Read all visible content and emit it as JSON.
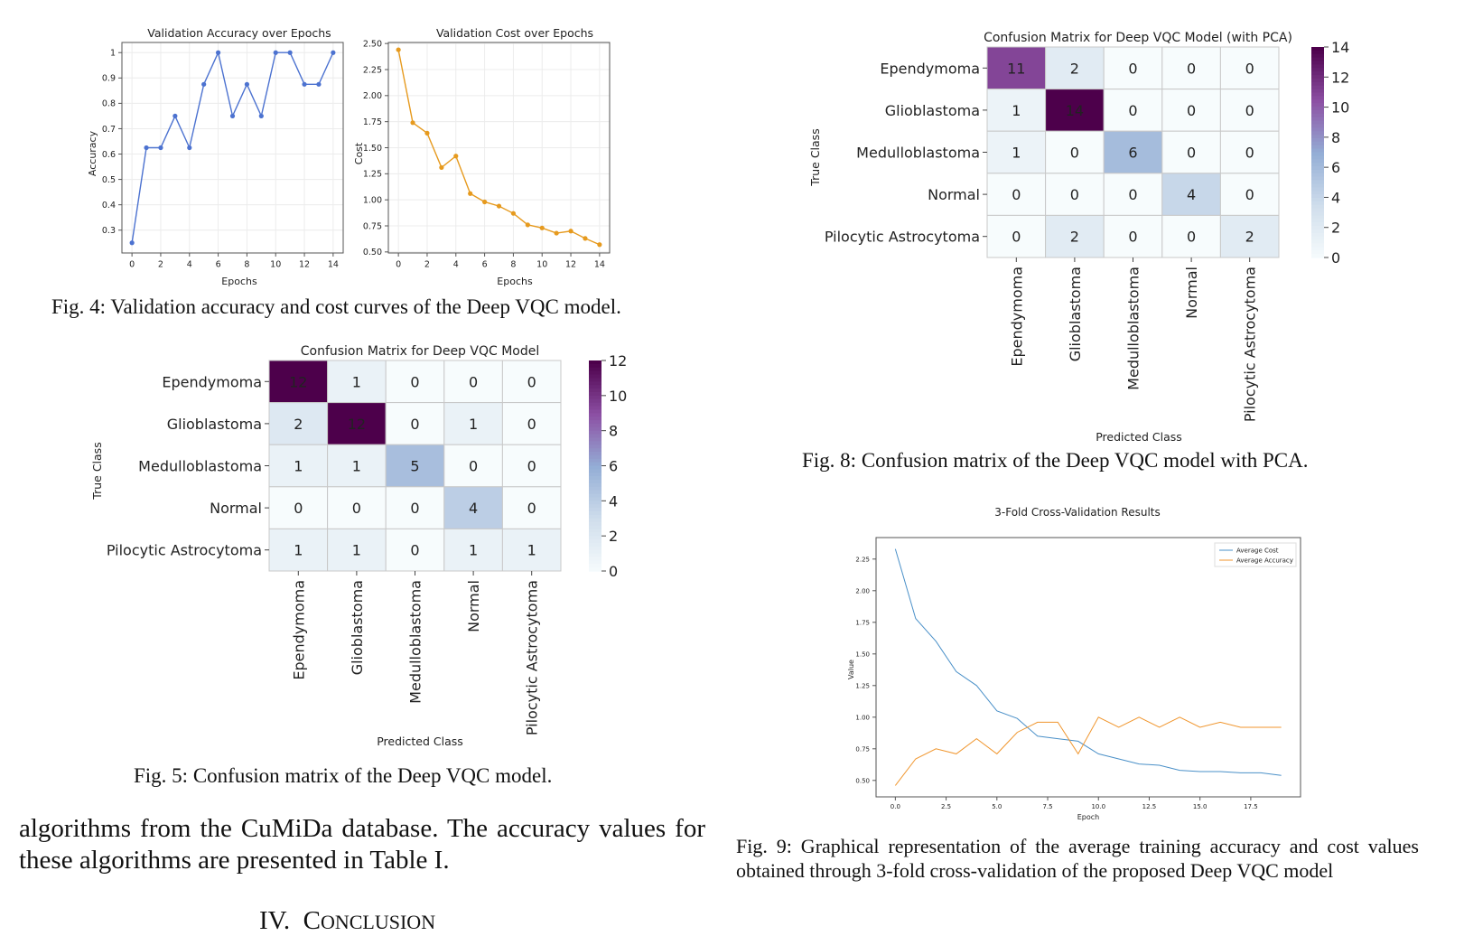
{
  "fig4": {
    "caption": "Fig. 4: Validation accuracy and cost curves of the Deep VQC model.",
    "accuracy": {
      "title": "Validation Accuracy over Epochs",
      "xlabel": "Epochs",
      "ylabel": "Accuracy"
    },
    "cost": {
      "title": "Validation Cost over Epochs",
      "xlabel": "Epochs",
      "ylabel": "Cost"
    }
  },
  "fig5": {
    "caption": "Fig. 5: Confusion matrix of the Deep VQC model.",
    "title": "Confusion Matrix for Deep VQC Model",
    "xlabel": "Predicted Class",
    "ylabel": "True Class"
  },
  "fig8": {
    "caption": "Fig. 8: Confusion matrix of the Deep VQC model with PCA.",
    "title": "Confusion Matrix for Deep VQC Model (with PCA)",
    "xlabel": "Predicted Class",
    "ylabel": "True Class"
  },
  "fig9": {
    "caption": "Fig. 9: Graphical representation of the average training accuracy and cost values obtained through 3-fold cross-validation of the proposed Deep VQC model",
    "title": "3-Fold Cross-Validation Results",
    "xlabel": "Epoch",
    "ylabel": "Value"
  },
  "body_text": "algorithms from the CuMiDa database. The accuracy values for these algorithms are presented in Table I.",
  "section_heading": "IV. Conclusion",
  "section_number": "IV.",
  "section_title_first": "C",
  "section_title_rest": "ONCLUSION",
  "chart_data": [
    {
      "type": "line",
      "title": "Validation Accuracy over Epochs",
      "xlabel": "Epochs",
      "ylabel": "Accuracy",
      "x": [
        0,
        1,
        2,
        3,
        4,
        5,
        6,
        7,
        8,
        9,
        10,
        11,
        12,
        13,
        14
      ],
      "series": [
        {
          "values": [
            0.25,
            0.625,
            0.625,
            0.75,
            0.625,
            0.875,
            1.0,
            0.75,
            0.875,
            0.75,
            1.0,
            1.0,
            0.875,
            0.875,
            1.0
          ]
        }
      ],
      "xticks": [
        0,
        2,
        4,
        6,
        8,
        10,
        12,
        14
      ],
      "yticks": [
        0.3,
        0.4,
        0.5,
        0.6,
        0.7,
        0.8,
        0.9,
        1.0
      ],
      "xlim": [
        -0.7,
        14.7
      ],
      "ylim": [
        0.21,
        1.04
      ],
      "grid": true,
      "color": "#4c72d0"
    },
    {
      "type": "line",
      "title": "Validation Cost over Epochs",
      "xlabel": "Epochs",
      "ylabel": "Cost",
      "x": [
        0,
        1,
        2,
        3,
        4,
        5,
        6,
        7,
        8,
        9,
        10,
        11,
        12,
        13,
        14
      ],
      "series": [
        {
          "values": [
            2.44,
            1.74,
            1.64,
            1.31,
            1.42,
            1.06,
            0.98,
            0.94,
            0.87,
            0.76,
            0.73,
            0.68,
            0.7,
            0.63,
            0.57
          ]
        }
      ],
      "xticks": [
        0,
        2,
        4,
        6,
        8,
        10,
        12,
        14
      ],
      "yticks": [
        0.5,
        0.75,
        1.0,
        1.25,
        1.5,
        1.75,
        2.0,
        2.25,
        2.5
      ],
      "ytick_labels": [
        "0.50",
        "0.75",
        "1.00",
        "1.25",
        "1.50",
        "1.75",
        "2.00",
        "2.25",
        "2.50"
      ],
      "xlim": [
        -0.7,
        14.7
      ],
      "ylim": [
        0.49,
        2.51
      ],
      "grid": true,
      "color": "#e69a1e"
    },
    {
      "type": "heatmap",
      "title": "Confusion Matrix for Deep VQC Model",
      "xlabel": "Predicted Class",
      "ylabel": "True Class",
      "rows": [
        "Ependymoma",
        "Glioblastoma",
        "Medulloblastoma",
        "Normal",
        "Pilocytic Astrocytoma"
      ],
      "cols": [
        "Ependymoma",
        "Glioblastoma",
        "Medulloblastoma",
        "Normal",
        "Pilocytic Astrocytoma"
      ],
      "values": [
        [
          12,
          1,
          0,
          0,
          0
        ],
        [
          2,
          12,
          0,
          1,
          0
        ],
        [
          1,
          1,
          5,
          0,
          0
        ],
        [
          0,
          0,
          0,
          4,
          0
        ],
        [
          1,
          1,
          0,
          1,
          1
        ]
      ],
      "vmax": 12,
      "colorbar_ticks": [
        0,
        2,
        4,
        6,
        8,
        10,
        12
      ],
      "colormap": "BuPu"
    },
    {
      "type": "heatmap",
      "title": "Confusion Matrix for Deep VQC Model (with PCA)",
      "xlabel": "Predicted Class",
      "ylabel": "True Class",
      "rows": [
        "Ependymoma",
        "Glioblastoma",
        "Medulloblastoma",
        "Normal",
        "Pilocytic Astrocytoma"
      ],
      "cols": [
        "Ependymoma",
        "Glioblastoma",
        "Medulloblastoma",
        "Normal",
        "Pilocytic Astrocytoma"
      ],
      "values": [
        [
          11,
          2,
          0,
          0,
          0
        ],
        [
          1,
          14,
          0,
          0,
          0
        ],
        [
          1,
          0,
          6,
          0,
          0
        ],
        [
          0,
          0,
          0,
          4,
          0
        ],
        [
          0,
          2,
          0,
          0,
          2
        ]
      ],
      "vmax": 14,
      "colorbar_ticks": [
        0,
        2,
        4,
        6,
        8,
        10,
        12,
        14
      ],
      "colormap": "BuPu"
    },
    {
      "type": "line",
      "title": "3-Fold Cross-Validation Results",
      "xlabel": "Epoch",
      "ylabel": "Value",
      "x": [
        0,
        1,
        2,
        3,
        4,
        5,
        6,
        7,
        8,
        9,
        10,
        11,
        12,
        13,
        14,
        15,
        16,
        17,
        18,
        19
      ],
      "series": [
        {
          "name": "Average Cost",
          "color": "#4a90c8",
          "values": [
            2.33,
            1.78,
            1.6,
            1.36,
            1.25,
            1.05,
            0.99,
            0.85,
            0.83,
            0.81,
            0.71,
            0.67,
            0.63,
            0.62,
            0.58,
            0.57,
            0.57,
            0.56,
            0.56,
            0.54
          ]
        },
        {
          "name": "Average Accuracy",
          "color": "#f0962e",
          "values": [
            0.46,
            0.67,
            0.75,
            0.71,
            0.83,
            0.71,
            0.88,
            0.96,
            0.96,
            0.71,
            1.0,
            0.92,
            1.0,
            0.92,
            1.0,
            0.92,
            0.96,
            0.92,
            0.92,
            0.92
          ]
        }
      ],
      "xticks": [
        0,
        2.5,
        5,
        7.5,
        10,
        12.5,
        15,
        17.5
      ],
      "xtick_labels": [
        "0.0",
        "2.5",
        "5.0",
        "7.5",
        "10.0",
        "12.5",
        "15.0",
        "17.5"
      ],
      "yticks": [
        0.5,
        0.75,
        1.0,
        1.25,
        1.5,
        1.75,
        2.0,
        2.25
      ],
      "ytick_labels": [
        "0.50",
        "0.75",
        "1.00",
        "1.25",
        "1.50",
        "1.75",
        "2.00",
        "2.25"
      ],
      "xlim": [
        -0.95,
        19.95
      ],
      "ylim": [
        0.37,
        2.42
      ],
      "grid": false,
      "legend": "top-right"
    }
  ]
}
